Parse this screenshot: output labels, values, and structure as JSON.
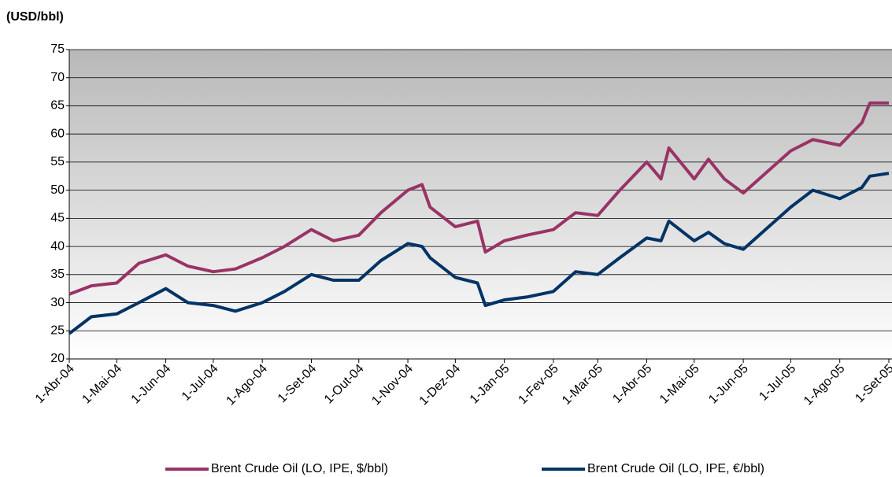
{
  "chart_data": {
    "type": "line",
    "y_label": "(USD/bbl)",
    "x": [
      "2004-04-01",
      "2004-04-15",
      "2004-05-01",
      "2004-05-15",
      "2004-06-01",
      "2004-06-15",
      "2004-07-01",
      "2004-07-15",
      "2004-08-01",
      "2004-08-15",
      "2004-09-01",
      "2004-09-15",
      "2004-10-01",
      "2004-10-15",
      "2004-11-01",
      "2004-11-10",
      "2004-11-15",
      "2004-12-01",
      "2004-12-15",
      "2004-12-20",
      "2005-01-01",
      "2005-01-15",
      "2005-02-01",
      "2005-02-15",
      "2005-03-01",
      "2005-03-15",
      "2005-04-01",
      "2005-04-10",
      "2005-04-15",
      "2005-05-01",
      "2005-05-10",
      "2005-05-20",
      "2005-06-01",
      "2005-06-15",
      "2005-07-01",
      "2005-07-15",
      "2005-08-01",
      "2005-08-15",
      "2005-08-20",
      "2005-09-01"
    ],
    "series": [
      {
        "name": "Brent Crude Oil (LO, IPE, $/bbl)",
        "color": "#993366",
        "values": [
          31.5,
          33,
          33.5,
          37,
          38.5,
          36.5,
          35.5,
          36,
          38,
          40,
          43,
          41,
          42,
          46,
          50,
          51,
          47,
          43.5,
          44.5,
          39,
          41,
          42,
          43,
          46,
          45.5,
          50,
          55,
          52,
          57.5,
          52,
          55.5,
          52,
          49.5,
          53,
          57,
          59,
          58,
          62,
          65.5,
          65.5
        ]
      },
      {
        "name": "Brent Crude Oil (LO, IPE, €/bbl)",
        "color": "#003366",
        "values": [
          24.5,
          27.5,
          28,
          30,
          32.5,
          30,
          29.5,
          28.5,
          30,
          32,
          35,
          34,
          34,
          37.5,
          40.5,
          40,
          38,
          34.5,
          33.5,
          29.5,
          30.5,
          31,
          32,
          35.5,
          35,
          38,
          41.5,
          41,
          44.5,
          41,
          42.5,
          40.5,
          39.5,
          43,
          47,
          50,
          48.5,
          50.5,
          52.5,
          53
        ]
      }
    ],
    "xlim": [
      "2004-04-01",
      "2005-09-03"
    ],
    "xticks": [
      {
        "value": "2004-04-01",
        "label": "1-Abr-04"
      },
      {
        "value": "2004-05-01",
        "label": "1-Mai-04"
      },
      {
        "value": "2004-06-01",
        "label": "1-Jun-04"
      },
      {
        "value": "2004-07-01",
        "label": "1-Jul-04"
      },
      {
        "value": "2004-08-01",
        "label": "1-Ago-04"
      },
      {
        "value": "2004-09-01",
        "label": "1-Set-04"
      },
      {
        "value": "2004-10-01",
        "label": "1-Out-04"
      },
      {
        "value": "2004-11-01",
        "label": "1-Nov-04"
      },
      {
        "value": "2004-12-01",
        "label": "1-Dez-04"
      },
      {
        "value": "2005-01-01",
        "label": "1-Jan-05"
      },
      {
        "value": "2005-02-01",
        "label": "1-Fev-05"
      },
      {
        "value": "2005-03-01",
        "label": "1-Mar-05"
      },
      {
        "value": "2005-04-01",
        "label": "1-Abr-05"
      },
      {
        "value": "2005-05-01",
        "label": "1-Mai-05"
      },
      {
        "value": "2005-06-01",
        "label": "1-Jun-05"
      },
      {
        "value": "2005-07-01",
        "label": "1-Jul-05"
      },
      {
        "value": "2005-08-01",
        "label": "1-Ago-05"
      },
      {
        "value": "2005-09-01",
        "label": "1-Set-05"
      }
    ],
    "ylim": [
      20,
      75
    ],
    "yticks": [
      20,
      25,
      30,
      35,
      40,
      45,
      50,
      55,
      60,
      65,
      70,
      75
    ],
    "grid": true
  }
}
